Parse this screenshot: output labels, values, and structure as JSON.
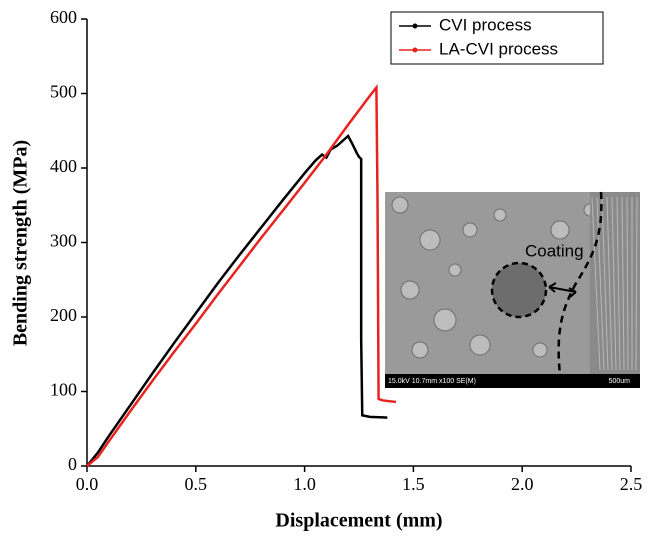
{
  "chart_data": {
    "type": "line",
    "xlabel": "Displacement (mm)",
    "ylabel": "Bending strength (MPa)",
    "xlim": [
      0,
      2.5
    ],
    "ylim": [
      0,
      600
    ],
    "xticks": [
      {
        "value": 0,
        "label": "0.0"
      },
      0.5,
      {
        "value": 1,
        "label": "1.0"
      },
      1.5,
      {
        "value": 2,
        "label": "2.0"
      },
      2.5
    ],
    "yticks": [
      0,
      100,
      200,
      300,
      400,
      500,
      600
    ],
    "legend": "upper right",
    "series": [
      {
        "name": "CVI process",
        "color": "#000000",
        "x": [
          0,
          0.05,
          0.1,
          0.2,
          0.3,
          0.4,
          0.5,
          0.6,
          0.7,
          0.8,
          0.9,
          1.0,
          1.05,
          1.08,
          1.1,
          1.12,
          1.15,
          1.2,
          1.22,
          1.24,
          1.25,
          1.26,
          1.26,
          1.265,
          1.3,
          1.38
        ],
        "values": [
          0,
          18,
          40,
          82,
          124,
          165,
          205,
          245,
          283,
          320,
          357,
          393,
          410,
          418,
          414,
          425,
          430,
          443,
          432,
          420,
          415,
          412,
          170,
          68,
          66,
          65
        ]
      },
      {
        "name": "LA-CVI process",
        "color": "#e8231f",
        "x": [
          0,
          0.05,
          0.1,
          0.2,
          0.3,
          0.4,
          0.5,
          0.6,
          0.7,
          0.8,
          0.9,
          1.0,
          1.1,
          1.2,
          1.3,
          1.33,
          1.335,
          1.34,
          1.36,
          1.42
        ],
        "values": [
          0,
          12,
          33,
          74,
          114,
          153,
          191,
          230,
          268,
          306,
          343,
          380,
          418,
          458,
          497,
          508,
          360,
          90,
          88,
          86
        ]
      }
    ],
    "inset": {
      "annotation": "Coating",
      "info": "15.0kV 10.7mm x100 SE(M)",
      "scale": "500um"
    }
  }
}
